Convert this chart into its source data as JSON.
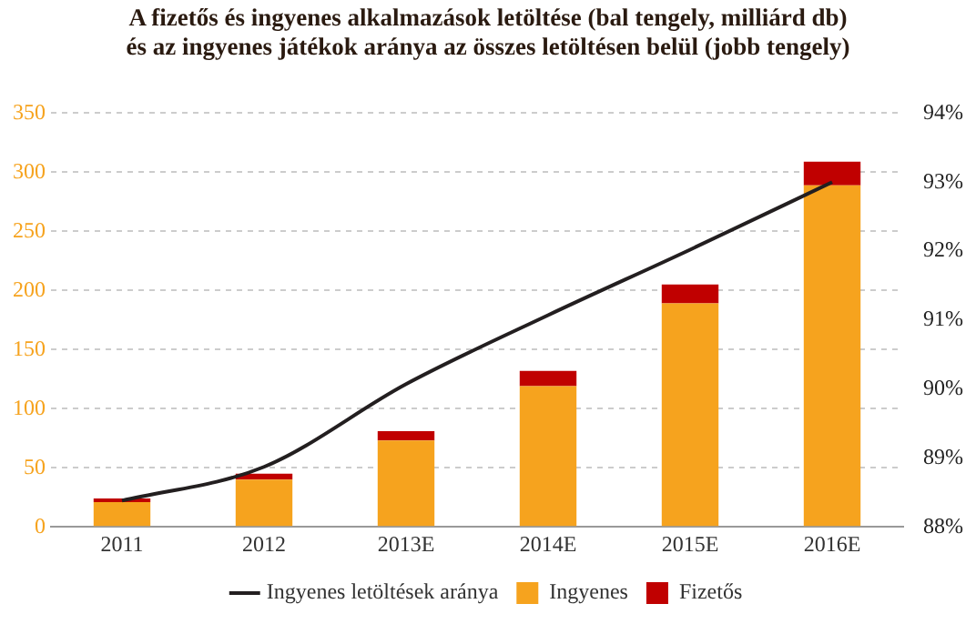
{
  "chart_data": {
    "type": "bar",
    "title": "A fizetős és ingyenes alkalmazások letöltése (bal tengely, milliárd db) és az ingyenes játékok aránya az összes letöltésen belül (jobb tengely)",
    "categories": [
      "2011",
      "2012",
      "2013E",
      "2014E",
      "2015E",
      "2016E"
    ],
    "stacked": true,
    "series": [
      {
        "name": "Ingyenes",
        "color": "#f6a31e",
        "values": [
          21,
          40,
          73,
          119,
          189,
          289
        ]
      },
      {
        "name": "Fizetős",
        "color": "#c00000",
        "values": [
          3,
          5,
          8,
          13,
          16,
          20
        ]
      },
      {
        "name": "Ingyenes letöltések aránya",
        "type": "line",
        "axis": "y2",
        "color": "#231f20",
        "values": [
          88.38,
          88.87,
          90.07,
          91.07,
          92.02,
          93.0
        ]
      }
    ],
    "ylim": [
      0,
      350
    ],
    "yticks": [
      0,
      50,
      100,
      150,
      200,
      250,
      300,
      350
    ],
    "y2lim": [
      88,
      94
    ],
    "y2ticks": [
      {
        "value": 88,
        "label": "88%"
      },
      {
        "value": 89,
        "label": "89%"
      },
      {
        "value": 90,
        "label": "90%"
      },
      {
        "value": 91,
        "label": "91%"
      },
      {
        "value": 92,
        "label": "92%"
      },
      {
        "value": 93,
        "label": "93%"
      },
      {
        "value": 94,
        "label": "94%"
      }
    ],
    "grid": "y",
    "legend": "bottom",
    "marker": "none",
    "line_style": "solid"
  }
}
